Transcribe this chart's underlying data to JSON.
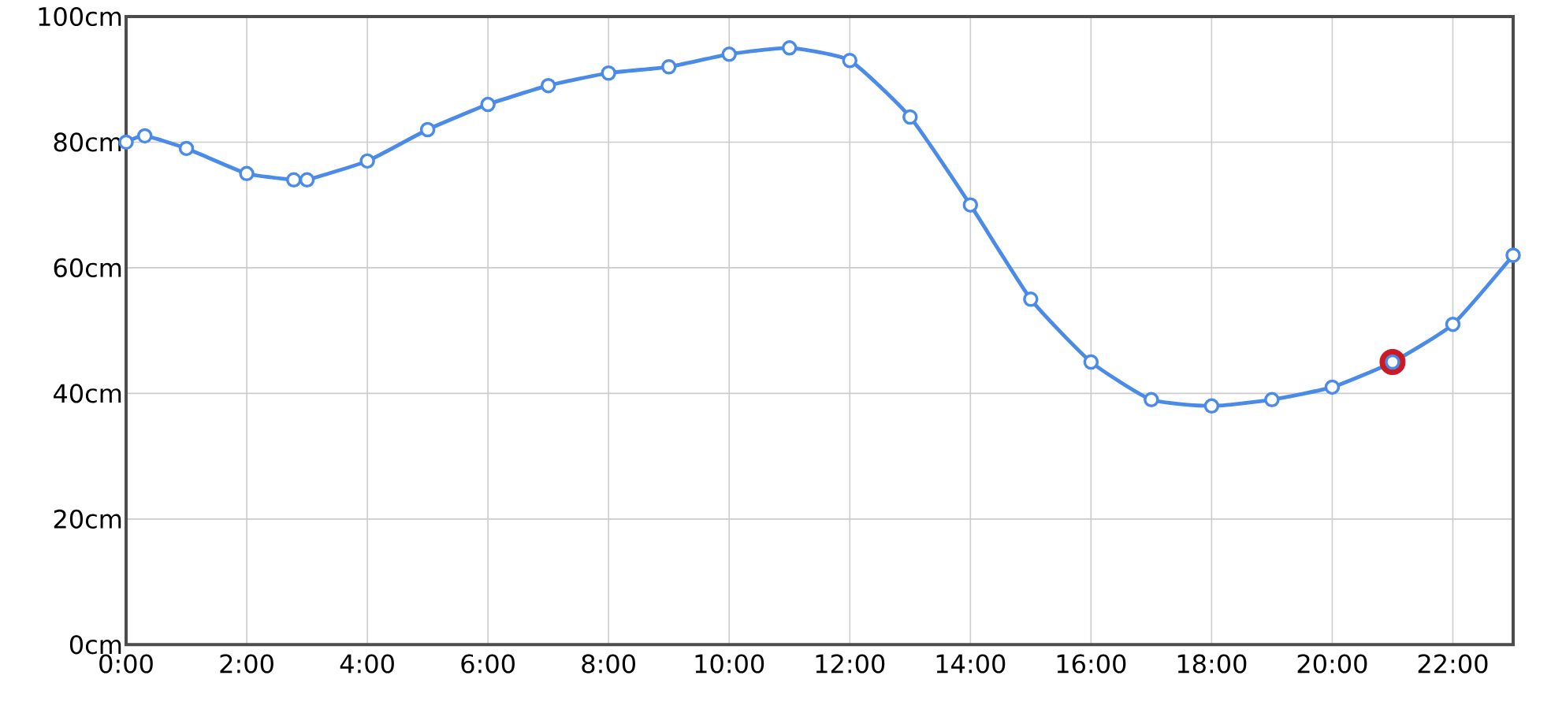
{
  "chart_data": {
    "type": "line",
    "x": [
      0,
      0.31,
      1,
      2,
      2.78,
      3,
      4,
      5,
      6,
      7,
      8,
      9,
      10,
      11,
      12,
      13,
      14,
      15,
      16,
      17,
      18,
      19,
      20,
      21,
      22,
      23
    ],
    "series": [
      {
        "color": "#4a8ae8",
        "marker": "circle",
        "values": [
          80,
          81,
          79,
          75,
          74,
          74,
          77,
          82,
          86,
          89,
          91,
          92,
          94,
          95,
          93,
          84,
          70,
          55,
          45,
          39,
          38,
          39,
          41,
          45,
          51,
          62
        ]
      },
      {
        "type": "scatter",
        "color": "#cc1a24",
        "marker": "circle",
        "x": [
          21
        ],
        "values": [
          45
        ]
      }
    ],
    "xlim": [
      0,
      23
    ],
    "ylim": [
      0,
      100
    ],
    "xticks": [
      {
        "value": 0,
        "label": "0:00"
      },
      {
        "value": 2,
        "label": "2:00"
      },
      {
        "value": 4,
        "label": "4:00"
      },
      {
        "value": 6,
        "label": "6:00"
      },
      {
        "value": 8,
        "label": "8:00"
      },
      {
        "value": 10,
        "label": "10:00"
      },
      {
        "value": 12,
        "label": "12:00"
      },
      {
        "value": 14,
        "label": "14:00"
      },
      {
        "value": 16,
        "label": "16:00"
      },
      {
        "value": 18,
        "label": "18:00"
      },
      {
        "value": 20,
        "label": "20:00"
      },
      {
        "value": 22,
        "label": "22:00"
      }
    ],
    "yticks": [
      {
        "value": 0,
        "label": "0cm"
      },
      {
        "value": 20,
        "label": "20cm"
      },
      {
        "value": 40,
        "label": "40cm"
      },
      {
        "value": 60,
        "label": "60cm"
      },
      {
        "value": 80,
        "label": "80cm"
      },
      {
        "value": 100,
        "label": "100cm"
      }
    ],
    "grid": true
  }
}
